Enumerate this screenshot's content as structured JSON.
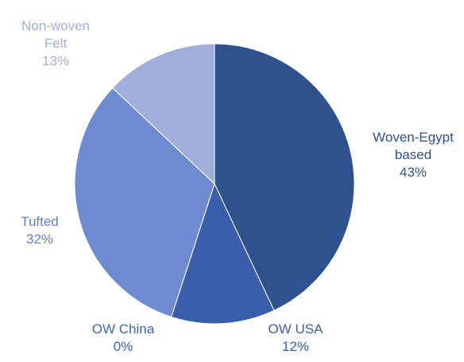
{
  "chart_data": {
    "type": "pie",
    "categories": [
      "Woven-Egypt based",
      "OW USA",
      "OW China",
      "Tufted",
      "Non-woven Felt"
    ],
    "values": [
      43,
      12,
      0,
      32,
      13
    ],
    "value_labels": [
      "43%",
      "12%",
      "0%",
      "32%",
      "13%"
    ],
    "colors": [
      "#2f528f",
      "#3a5eab",
      "#4468b8",
      "#6f8bcf",
      "#a0afd9"
    ]
  }
}
